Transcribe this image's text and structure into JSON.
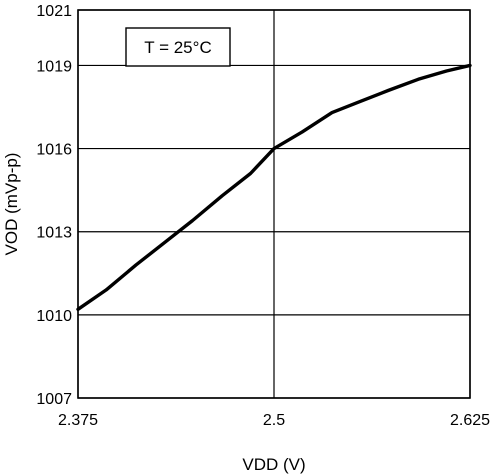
{
  "chart_data": {
    "type": "line",
    "xlabel": "VDD (V)",
    "ylabel": "VOD (mVp-p)",
    "xlim": [
      2.375,
      2.625
    ],
    "ylim": [
      1007,
      1021
    ],
    "x_ticks": [
      "2.375",
      "2.5",
      "2.625"
    ],
    "x_tick_values": [
      2.375,
      2.5,
      2.625
    ],
    "y_ticks": [
      "1021",
      "1019",
      "1016",
      "1013",
      "1010",
      "1007"
    ],
    "y_tick_values": [
      1021,
      1019,
      1016,
      1013,
      1010,
      1007
    ],
    "grid": true,
    "annotation": "T = 25°C",
    "series": [
      {
        "color": "#000000",
        "x": [
          2.375,
          2.393,
          2.412,
          2.43,
          2.448,
          2.467,
          2.485,
          2.5,
          2.518,
          2.537,
          2.555,
          2.573,
          2.592,
          2.61,
          2.625
        ],
        "y": [
          1010.2,
          1010.9,
          1011.8,
          1012.6,
          1013.4,
          1014.3,
          1015.1,
          1016.0,
          1016.6,
          1017.3,
          1017.7,
          1018.1,
          1018.5,
          1018.8,
          1019.0
        ]
      }
    ]
  }
}
